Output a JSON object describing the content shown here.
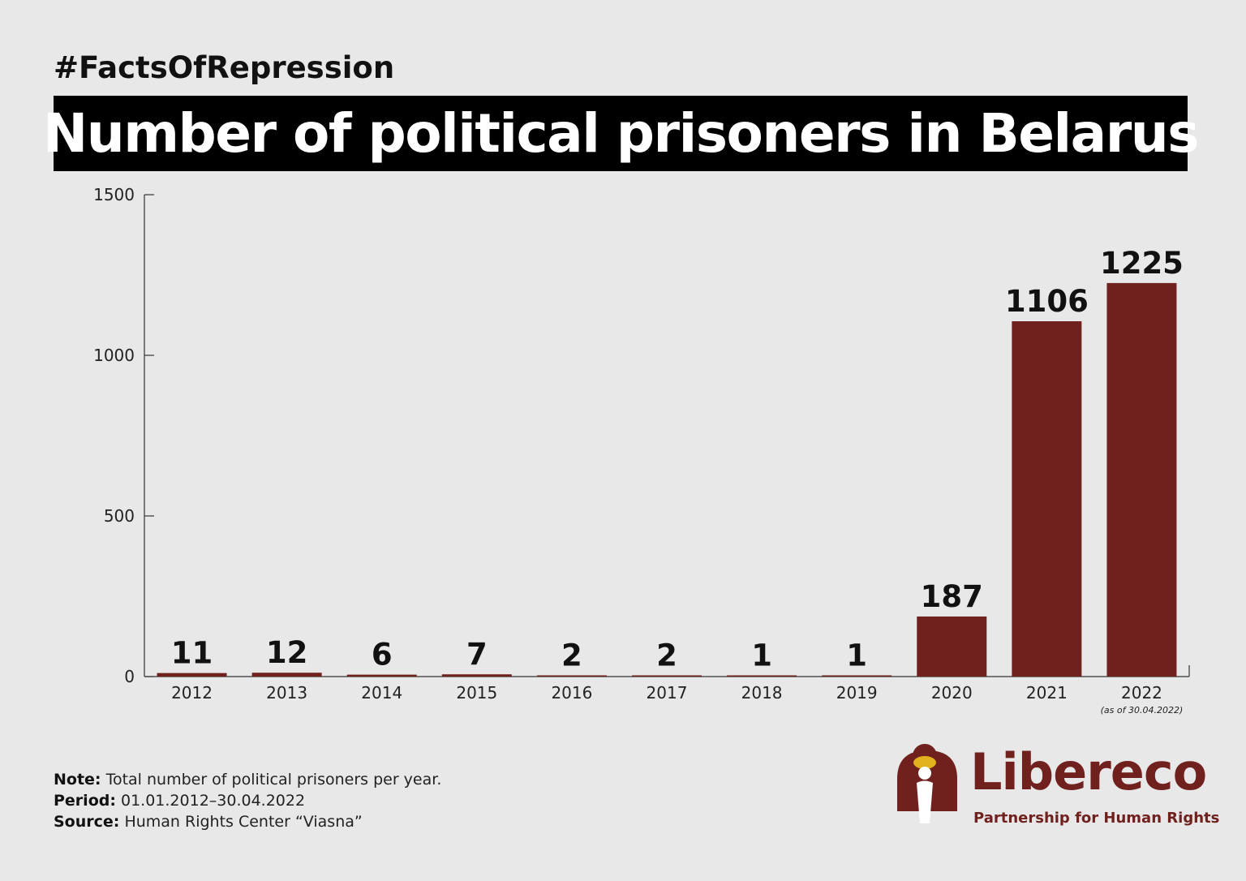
{
  "header": {
    "hashtag": "#FactsOfRepression",
    "title": "Number of political prisoners in Belarus"
  },
  "colors": {
    "bar": "#70211d",
    "title_bg": "#000000",
    "background": "#e8e8e8",
    "brand": "#70211d"
  },
  "chart_data": {
    "type": "bar",
    "categories": [
      "2012",
      "2013",
      "2014",
      "2015",
      "2016",
      "2017",
      "2018",
      "2019",
      "2020",
      "2021",
      "2022"
    ],
    "values": [
      11,
      12,
      6,
      7,
      2,
      2,
      1,
      1,
      187,
      1106,
      1225
    ],
    "category_notes": [
      "",
      "",
      "",
      "",
      "",
      "",
      "",
      "",
      "",
      "",
      "(as of 30.04.2022)"
    ],
    "ylim": [
      0,
      1500
    ],
    "yticks": [
      0,
      500,
      1000,
      1500
    ],
    "grid": false,
    "data_labels": true
  },
  "footer": {
    "note_label": "Note:",
    "note_text": "Total number of political prisoners per year.",
    "period_label": "Period:",
    "period_text": "01.01.2012–30.04.2022",
    "source_label": "Source:",
    "source_text": "Human Rights Center “Viasna”"
  },
  "logo": {
    "name": "Libereco",
    "tagline": "Partnership for Human Rights"
  }
}
